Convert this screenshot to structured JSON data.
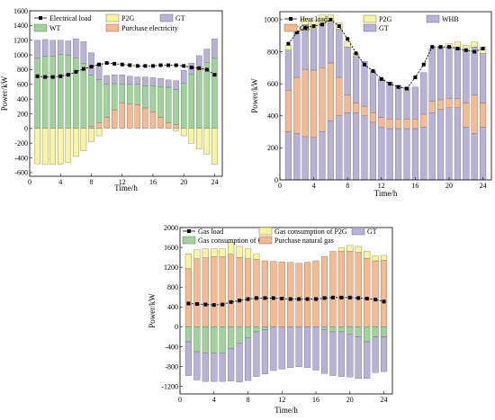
{
  "colors": {
    "WT": "#9ed49a",
    "P2G": "#f8f59a",
    "GT": "#b9b2d8",
    "Purchase electricity": "#f7b98f",
    "GB": "#f7b98f",
    "WHB": "#b9b2d8",
    "Purchase natural gas": "#f7b98f",
    "Gas consumption of GB": "#9ed49a",
    "Gas consumption of P2G": "#f8f59a",
    "load": "#000000"
  },
  "chart_data": [
    {
      "type": "bar",
      "stacked": true,
      "xlabel": "Time/h",
      "ylabel": "Power/kW",
      "xlim": [
        0,
        25
      ],
      "ylim": [
        -650,
        1600
      ],
      "xticks": [
        0,
        4,
        8,
        12,
        16,
        20,
        24
      ],
      "yticks": [
        -600,
        -400,
        -200,
        0,
        200,
        400,
        600,
        800,
        1000,
        1200,
        1400,
        1600
      ],
      "x": [
        1,
        2,
        3,
        4,
        5,
        6,
        7,
        8,
        9,
        10,
        11,
        12,
        13,
        14,
        15,
        16,
        17,
        18,
        19,
        20,
        21,
        22,
        23,
        24
      ],
      "series": [
        {
          "name": "Purchase electricity",
          "values": [
            0,
            0,
            0,
            0,
            0,
            0,
            0,
            30,
            80,
            150,
            250,
            350,
            330,
            320,
            280,
            220,
            150,
            80,
            50,
            0,
            0,
            0,
            0,
            0
          ]
        },
        {
          "name": "WT",
          "values": [
            960,
            980,
            980,
            1010,
            1000,
            960,
            880,
            700,
            580,
            450,
            360,
            250,
            270,
            280,
            300,
            360,
            420,
            480,
            480,
            620,
            740,
            800,
            900,
            960
          ]
        },
        {
          "name": "GT",
          "values": [
            240,
            230,
            220,
            190,
            190,
            260,
            300,
            300,
            220,
            120,
            120,
            130,
            110,
            100,
            120,
            110,
            110,
            100,
            120,
            170,
            150,
            190,
            180,
            260
          ]
        },
        {
          "name": "P2G",
          "values": [
            -480,
            -490,
            -490,
            -490,
            -460,
            -380,
            -300,
            -180,
            -100,
            0,
            0,
            0,
            0,
            0,
            0,
            0,
            0,
            0,
            -30,
            -100,
            -200,
            -280,
            -350,
            -490
          ]
        },
        {
          "name": "Electrical load",
          "type": "line",
          "values": [
            710,
            700,
            700,
            710,
            730,
            770,
            810,
            840,
            870,
            890,
            880,
            870,
            860,
            850,
            850,
            850,
            860,
            860,
            860,
            850,
            830,
            820,
            800,
            730
          ]
        }
      ]
    },
    {
      "type": "bar",
      "stacked": true,
      "xlabel": "Time/h",
      "ylabel": "Power/kW",
      "xlim": [
        0,
        25
      ],
      "ylim": [
        0,
        1050
      ],
      "xticks": [
        0,
        4,
        8,
        12,
        16,
        20,
        24
      ],
      "yticks": [
        0,
        200,
        400,
        600,
        800,
        1000
      ],
      "x": [
        1,
        2,
        3,
        4,
        5,
        6,
        7,
        8,
        9,
        10,
        11,
        12,
        13,
        14,
        15,
        16,
        17,
        18,
        19,
        20,
        21,
        22,
        23,
        24
      ],
      "series": [
        {
          "name": "GT",
          "values": [
            300,
            290,
            270,
            265,
            300,
            370,
            400,
            420,
            420,
            400,
            360,
            330,
            320,
            320,
            320,
            320,
            330,
            420,
            440,
            450,
            450,
            330,
            290,
            330
          ]
        },
        {
          "name": "GB",
          "values": [
            260,
            350,
            420,
            420,
            400,
            360,
            240,
            110,
            60,
            60,
            60,
            60,
            60,
            60,
            60,
            60,
            80,
            70,
            60,
            60,
            60,
            150,
            240,
            150
          ]
        },
        {
          "name": "WHB",
          "values": [
            250,
            280,
            280,
            260,
            280,
            250,
            300,
            300,
            290,
            280,
            260,
            240,
            230,
            210,
            200,
            200,
            260,
            330,
            320,
            320,
            320,
            330,
            300,
            310
          ]
        },
        {
          "name": "P2G",
          "values": [
            30,
            40,
            40,
            50,
            50,
            50,
            40,
            30,
            20,
            0,
            0,
            0,
            0,
            0,
            0,
            0,
            0,
            0,
            10,
            20,
            30,
            30,
            30,
            40
          ]
        },
        {
          "name": "Heat load",
          "type": "line",
          "values": [
            850,
            920,
            950,
            960,
            970,
            1000,
            960,
            880,
            790,
            720,
            680,
            630,
            600,
            580,
            570,
            640,
            720,
            830,
            830,
            830,
            820,
            810,
            800,
            820
          ]
        }
      ]
    },
    {
      "type": "bar",
      "stacked": true,
      "xlabel": "Time/h",
      "ylabel": "Power/kW",
      "xlim": [
        0,
        25
      ],
      "ylim": [
        -1350,
        2000
      ],
      "xticks": [
        0,
        4,
        8,
        12,
        16,
        20,
        24
      ],
      "yticks": [
        -1200,
        -800,
        -400,
        0,
        400,
        800,
        1200,
        1600,
        2000
      ],
      "x": [
        1,
        2,
        3,
        4,
        5,
        6,
        7,
        8,
        9,
        10,
        11,
        12,
        13,
        14,
        15,
        16,
        17,
        18,
        19,
        20,
        21,
        22,
        23,
        24
      ],
      "series": [
        {
          "name": "Purchase natural gas",
          "values": [
            1170,
            1370,
            1390,
            1410,
            1410,
            1460,
            1400,
            1370,
            1360,
            1330,
            1320,
            1310,
            1300,
            1280,
            1300,
            1330,
            1420,
            1520,
            1520,
            1520,
            1500,
            1380,
            1330,
            1340
          ]
        },
        {
          "name": "Gas consumption of P2G",
          "values": [
            300,
            180,
            180,
            160,
            160,
            240,
            220,
            200,
            100,
            0,
            0,
            0,
            0,
            0,
            0,
            0,
            0,
            0,
            70,
            120,
            120,
            140,
            100,
            100
          ]
        },
        {
          "name": "Gas consumption of GB",
          "values": [
            -300,
            -500,
            -520,
            -530,
            -530,
            -430,
            -330,
            -220,
            -100,
            -50,
            0,
            0,
            0,
            0,
            0,
            0,
            -60,
            -100,
            -100,
            -150,
            -200,
            -300,
            -200,
            -200
          ]
        },
        {
          "name": "GT",
          "values": [
            -680,
            -570,
            -580,
            -570,
            -570,
            -660,
            -780,
            -860,
            -900,
            -900,
            -880,
            -850,
            -820,
            -800,
            -820,
            -870,
            -880,
            -880,
            -900,
            -860,
            -840,
            -740,
            -720,
            -700
          ]
        },
        {
          "name": "Gas load",
          "type": "line",
          "values": [
            470,
            460,
            450,
            440,
            450,
            500,
            530,
            560,
            580,
            580,
            580,
            570,
            560,
            560,
            560,
            560,
            580,
            590,
            590,
            590,
            580,
            570,
            550,
            510
          ]
        }
      ]
    }
  ],
  "legends": [
    {
      "items": [
        {
          "label": "Electrical load",
          "key": "load"
        },
        {
          "label": "P2G",
          "key": "P2G"
        },
        {
          "label": "GT",
          "key": "GT"
        },
        {
          "label": "WT",
          "key": "WT"
        },
        {
          "label": "Purchase electricity",
          "key": "Purchase electricity"
        }
      ]
    },
    {
      "items": [
        {
          "label": "Heat load",
          "key": "load"
        },
        {
          "label": "P2G",
          "key": "P2G"
        },
        {
          "label": "WHB",
          "key": "WHB"
        },
        {
          "label": "GB",
          "key": "GB"
        },
        {
          "label": "GT",
          "key": "GT"
        }
      ]
    },
    {
      "items": [
        {
          "label": "Gas load",
          "key": "load"
        },
        {
          "label": "Gas consumption of P2G",
          "key": "Gas consumption of P2G"
        },
        {
          "label": "GT",
          "key": "GT"
        },
        {
          "label": "Gas consumption of GB",
          "key": "Gas consumption of GB"
        },
        {
          "label": "Purchase natural gas",
          "key": "Purchase natural gas"
        }
      ]
    }
  ]
}
